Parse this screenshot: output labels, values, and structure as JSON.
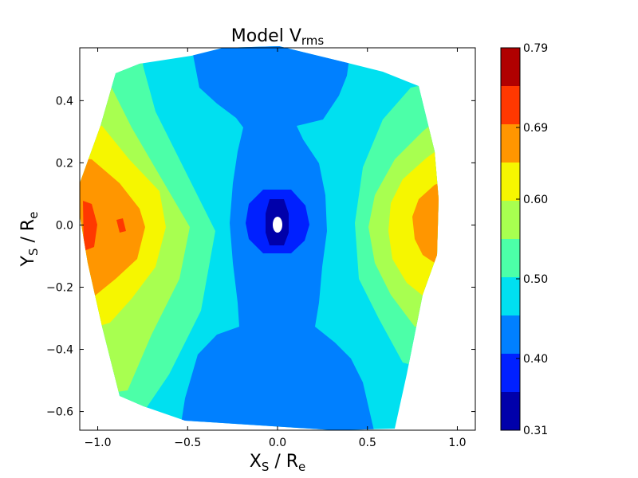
{
  "chart_data": {
    "type": "heatmap",
    "title_main": "Model V",
    "title_sub": "rms",
    "xlabel_main": "X",
    "xlabel_sub": "S",
    "xlabel_mid": " / R",
    "xlabel_sub2": "e",
    "ylabel_main": "Y",
    "ylabel_sub": "S",
    "ylabel_mid": " / R",
    "ylabel_sub2": "e",
    "xlim": [
      -1.1,
      1.1
    ],
    "ylim": [
      -0.66,
      0.57
    ],
    "x_ticks": [
      "−1.0",
      "−0.5",
      "0.0",
      "0.5",
      "1.0"
    ],
    "x_tick_values": [
      -1.0,
      -0.5,
      0.0,
      0.5,
      1.0
    ],
    "y_ticks": [
      "−0.6",
      "−0.4",
      "−0.2",
      "0.0",
      "0.2",
      "0.4"
    ],
    "y_tick_values": [
      -0.6,
      -0.4,
      -0.2,
      0.0,
      0.2,
      0.4
    ],
    "colorbar": {
      "min": 0.31,
      "max": 0.79,
      "tick_labels": [
        "0.31",
        "0.40",
        "0.50",
        "0.60",
        "0.69",
        "0.79"
      ],
      "tick_values": [
        0.31,
        0.4,
        0.5,
        0.6,
        0.69,
        0.79
      ],
      "levels": [
        {
          "lo": 0.31,
          "hi": 0.358,
          "color": "#0000aa"
        },
        {
          "lo": 0.358,
          "hi": 0.406,
          "color": "#0020ff"
        },
        {
          "lo": 0.406,
          "hi": 0.454,
          "color": "#0080ff"
        },
        {
          "lo": 0.454,
          "hi": 0.502,
          "color": "#00e0f0"
        },
        {
          "lo": 0.502,
          "hi": 0.55,
          "color": "#4cffa8"
        },
        {
          "lo": 0.55,
          "hi": 0.598,
          "color": "#a8ff50"
        },
        {
          "lo": 0.598,
          "hi": 0.646,
          "color": "#f6f600"
        },
        {
          "lo": 0.646,
          "hi": 0.694,
          "color": "#ff9600"
        },
        {
          "lo": 0.694,
          "hi": 0.742,
          "color": "#ff3800"
        },
        {
          "lo": 0.742,
          "hi": 0.79,
          "color": "#b00000"
        }
      ]
    }
  }
}
